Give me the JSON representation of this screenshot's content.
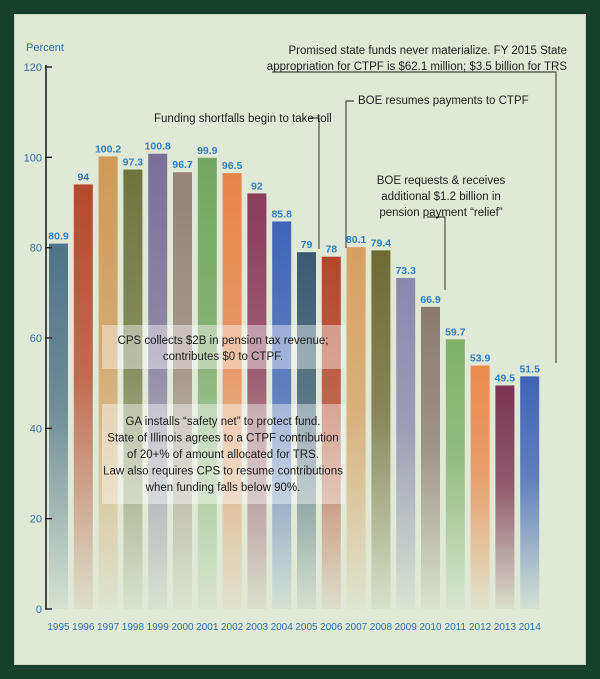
{
  "chart_data": {
    "type": "bar",
    "ylabel": "Percent",
    "ylim": [
      0,
      120
    ],
    "yticks": [
      0,
      20,
      40,
      60,
      80,
      100,
      120
    ],
    "grid": false,
    "categories": [
      "1995",
      "1996",
      "1997",
      "1998",
      "1999",
      "2000",
      "2001",
      "2002",
      "2003",
      "2004",
      "2005",
      "2006",
      "2007",
      "2008",
      "2009",
      "2010",
      "2011",
      "2012",
      "2013",
      "2014"
    ],
    "values": [
      80.9,
      94,
      100.2,
      97.3,
      100.8,
      96.7,
      99.9,
      96.5,
      92,
      85.8,
      79,
      78,
      80.1,
      79.4,
      73.3,
      66.9,
      59.7,
      53.9,
      49.5,
      51.5
    ],
    "value_labels": [
      "80.9",
      "94",
      "100.2",
      "97.3",
      "100.8",
      "96.7",
      "99.9",
      "96.5",
      "92",
      "85.8",
      "79",
      "78",
      "80.1",
      "79.4",
      "73.3",
      "66.9",
      "59.7",
      "53.9",
      "49.5",
      "51.5"
    ],
    "colors": [
      "#4f7388",
      "#b8472c",
      "#d09a58",
      "#6e7440",
      "#7a6f98",
      "#958278",
      "#72a65f",
      "#e8844a",
      "#8a3b5a",
      "#3f63b8",
      "#3a5a72",
      "#b5452a",
      "#d7a063",
      "#6d6a35",
      "#8a88ad",
      "#8a7a70",
      "#7fb16b",
      "#ea8a4e",
      "#7a3350",
      "#3f63b8"
    ],
    "annotations": [
      {
        "lines": [
          "Promised state funds never materialize. FY 2015 State",
          "appropriation for CTPF is $62.1 million; $3.5 billion for TRS"
        ],
        "target": "2014"
      },
      {
        "lines": [
          "BOE resumes payments to CTPF"
        ],
        "target": "2006"
      },
      {
        "lines": [
          "Funding shortfalls begin to take toll"
        ],
        "target": "2005"
      },
      {
        "lines": [
          "BOE requests & receives",
          "additional $1.2 billion in",
          "pension payment “relief”"
        ],
        "target": "2010"
      }
    ],
    "boxes": [
      {
        "lines": [
          "CPS collects $2B in pension tax revenue;",
          "contributes $0 to CTPF."
        ]
      },
      {
        "lines": [
          "GA installs “safety net” to protect fund.",
          "State of Illinois agrees to a CTPF contribution",
          "of 20+% of amount allocated for TRS.",
          "Law also requires CPS to resume contributions",
          "when funding falls below 90%."
        ]
      }
    ]
  }
}
